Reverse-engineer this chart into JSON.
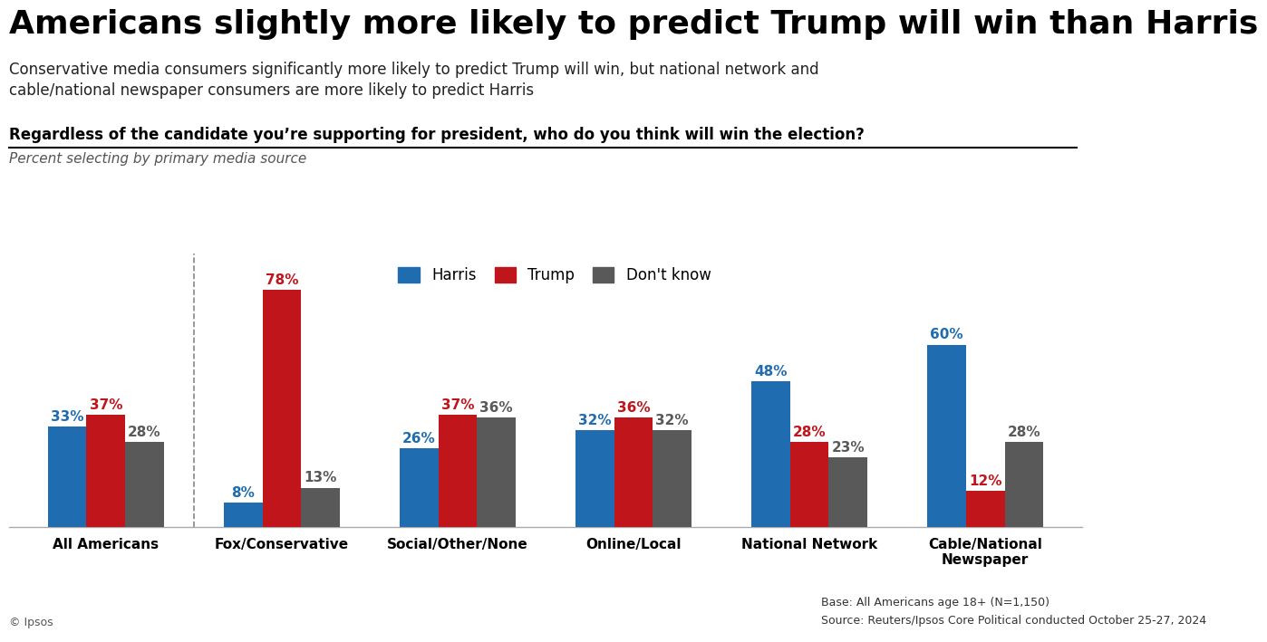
{
  "title": "Americans slightly more likely to predict Trump will win than Harris",
  "subtitle": "Conservative media consumers significantly more likely to predict Trump will win, but national network and\ncable/national newspaper consumers are more likely to predict Harris",
  "question": "Regardless of the candidate you’re supporting for president, who do you think will win the election?",
  "subquestion": "Percent selecting by primary media source",
  "categories": [
    "All Americans",
    "Fox/Conservative",
    "Social/Other/None",
    "Online/Local",
    "National Network",
    "Cable/National\nNewspaper"
  ],
  "harris": [
    33,
    8,
    26,
    32,
    48,
    60
  ],
  "trump": [
    37,
    78,
    37,
    36,
    28,
    12
  ],
  "dont_know": [
    28,
    13,
    36,
    32,
    23,
    28
  ],
  "harris_color": "#1f6cb0",
  "trump_color": "#c0151a",
  "dont_know_color": "#595959",
  "bar_width": 0.22,
  "ylim": [
    0,
    90
  ],
  "legend_labels": [
    "Harris",
    "Trump",
    "Don't know"
  ],
  "footnote_left": "© Ipsos",
  "footnote_right_line1": "Base: All Americans age 18+ (N=1,150)",
  "footnote_right_line2": "Source: Reuters/Ipsos Core Political conducted October 25-27, 2024",
  "bg_color": "#ffffff",
  "title_fontsize": 26,
  "subtitle_fontsize": 12,
  "question_fontsize": 12,
  "subquestion_fontsize": 11,
  "label_fontsize": 11,
  "tick_fontsize": 11,
  "legend_fontsize": 12,
  "footnote_fontsize": 9,
  "ipsos_color": "#1a9a8a"
}
